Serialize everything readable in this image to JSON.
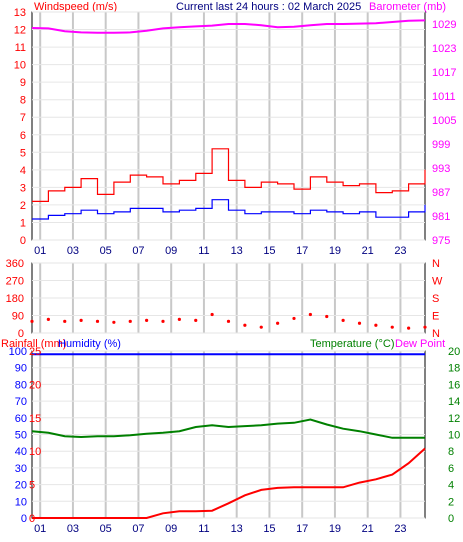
{
  "header": {
    "left_title": "Windspeed (m/s)",
    "center_title": "Current last 24 hours : 02 March 2025",
    "right_title": "Barometer (mb)"
  },
  "colors": {
    "wind_max": "#ff0000",
    "wind_avg": "#0000ff",
    "barometer": "#ff00ff",
    "direction": "#ff0000",
    "rain": "#ff0000",
    "humidity": "#0000ff",
    "temperature": "#008000",
    "dewpoint": "#ff00ff",
    "frame": "#000000",
    "grid_v": "#c8c8c8",
    "grid_h": "#e6e6e6"
  },
  "chart_data": [
    {
      "type": "line",
      "panel": "wind",
      "x_tick_labels": [
        "01",
        "03",
        "05",
        "07",
        "09",
        "11",
        "13",
        "15",
        "17",
        "19",
        "21",
        "23"
      ],
      "left_axis": {
        "label": "Windspeed (m/s)",
        "ticks": [
          0,
          1,
          2,
          3,
          4,
          5,
          6,
          7,
          8,
          9,
          10,
          11,
          12,
          13
        ],
        "ylim": [
          0,
          13
        ]
      },
      "right_axis": {
        "label": "Barometer (mb)",
        "ticks": [
          975,
          981,
          987,
          993,
          999,
          1005,
          1011,
          1017,
          1023,
          1029
        ],
        "ylim": [
          975,
          1032
        ]
      },
      "x_hours": [
        0,
        1,
        2,
        3,
        4,
        5,
        6,
        7,
        8,
        9,
        10,
        11,
        12,
        13,
        14,
        15,
        16,
        17,
        18,
        19,
        20,
        21,
        22,
        23,
        24
      ],
      "series": [
        {
          "legend_label": "Barometer (mb)",
          "axis": "right",
          "values": [
            1028.0,
            1027.9,
            1027.2,
            1026.9,
            1026.8,
            1026.8,
            1026.9,
            1027.3,
            1027.9,
            1028.2,
            1028.4,
            1028.6,
            1029.0,
            1029.0,
            1028.7,
            1028.2,
            1028.3,
            1028.7,
            1029.0,
            1029.0,
            1029.1,
            1029.2,
            1029.5,
            1029.8,
            1029.9
          ]
        },
        {
          "legend_label": "Windspeed (m/s)",
          "axis": "left",
          "variant": "gust",
          "values": [
            2.2,
            2.8,
            3.0,
            3.5,
            2.6,
            3.3,
            3.7,
            3.6,
            3.2,
            3.4,
            3.8,
            5.2,
            3.4,
            3.0,
            3.3,
            3.2,
            2.9,
            3.6,
            3.3,
            3.1,
            3.2,
            2.7,
            2.8,
            3.2,
            4.0
          ]
        },
        {
          "axis": "left",
          "variant": "average",
          "values": [
            1.2,
            1.4,
            1.5,
            1.7,
            1.5,
            1.6,
            1.8,
            1.8,
            1.6,
            1.7,
            1.8,
            2.3,
            1.7,
            1.5,
            1.6,
            1.6,
            1.5,
            1.7,
            1.6,
            1.5,
            1.6,
            1.3,
            1.3,
            1.6,
            2.0
          ]
        }
      ]
    },
    {
      "type": "scatter",
      "panel": "direction",
      "left_axis": {
        "ticks": [
          0,
          90,
          180,
          270,
          360
        ],
        "ylim": [
          0,
          360
        ]
      },
      "right_axis": {
        "ticks": [
          "N",
          "E",
          "S",
          "W",
          "N"
        ]
      },
      "x_hours": [
        0,
        1,
        2,
        3,
        4,
        5,
        6,
        7,
        8,
        9,
        10,
        11,
        12,
        13,
        14,
        15,
        16,
        17,
        18,
        19,
        20,
        21,
        22,
        23,
        24
      ],
      "series": [
        {
          "values": [
            60,
            70,
            60,
            65,
            60,
            55,
            60,
            65,
            60,
            70,
            65,
            95,
            60,
            40,
            30,
            50,
            75,
            95,
            85,
            65,
            50,
            40,
            30,
            25,
            30
          ]
        }
      ]
    },
    {
      "type": "line",
      "panel": "rain-humidity-temperature",
      "left_axis_outer": {
        "label": "Rainfall (mm)",
        "ticks": [
          0,
          5,
          10,
          15,
          20,
          25
        ],
        "ylim": [
          0,
          25
        ]
      },
      "left_axis_inner": {
        "label": "Humidity (%)",
        "ticks": [
          0,
          10,
          20,
          30,
          40,
          50,
          60,
          70,
          80,
          90,
          100
        ],
        "ylim": [
          0,
          100
        ]
      },
      "right_axis": {
        "label": "Temperature (°C)",
        "ticks": [
          0,
          2,
          4,
          6,
          8,
          10,
          12,
          14,
          16,
          18,
          20
        ],
        "ylim": [
          0,
          20
        ]
      },
      "legend_extra": "Dew Point",
      "x_hours": [
        0,
        1,
        2,
        3,
        4,
        5,
        6,
        7,
        8,
        9,
        10,
        11,
        12,
        13,
        14,
        15,
        16,
        17,
        18,
        19,
        20,
        21,
        22,
        23,
        24
      ],
      "series": [
        {
          "legend_label": "Rainfall (mm)",
          "axis": "left_outer",
          "values": [
            0,
            0,
            0,
            0,
            0,
            0,
            0,
            0,
            0.7,
            1.0,
            1.0,
            1.1,
            2.2,
            3.4,
            4.2,
            4.5,
            4.6,
            4.6,
            4.6,
            4.6,
            5.3,
            5.8,
            6.5,
            8.2,
            10.4
          ]
        },
        {
          "legend_label": "Humidity (%)",
          "axis": "left_inner",
          "values": [
            98,
            98,
            98,
            98,
            98,
            98,
            98,
            98,
            98,
            98,
            98,
            98,
            98,
            98,
            98,
            98,
            98,
            98,
            98,
            98,
            98,
            98,
            98,
            98,
            98
          ]
        },
        {
          "legend_label": "Temperature (°C)",
          "axis": "right",
          "values": [
            10.4,
            10.2,
            9.8,
            9.7,
            9.8,
            9.8,
            9.9,
            10.1,
            10.2,
            10.4,
            10.9,
            11.1,
            10.9,
            11.0,
            11.1,
            11.3,
            11.4,
            11.8,
            11.2,
            10.7,
            10.4,
            10.0,
            9.6,
            9.6,
            9.6
          ]
        }
      ]
    }
  ]
}
